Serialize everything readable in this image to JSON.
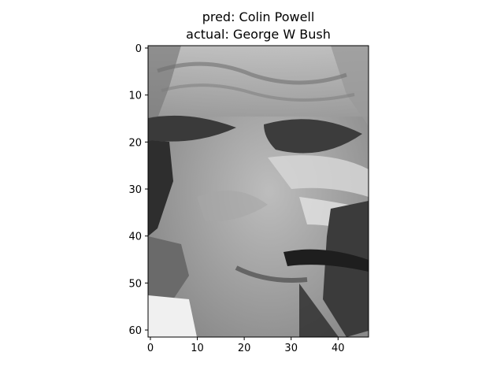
{
  "title": {
    "line1": "pred: Colin Powell",
    "line2": "actual: George W Bush"
  },
  "image": {
    "subject": "grayscale face photo",
    "colormap": "gray",
    "rows": 62,
    "cols": 47
  },
  "axes": {
    "x_ticks": [
      0,
      10,
      20,
      30,
      40
    ],
    "y_ticks": [
      0,
      10,
      20,
      30,
      40,
      50,
      60
    ],
    "x_ticks_text": [
      "0",
      "10",
      "20",
      "30",
      "40"
    ],
    "y_ticks_text": [
      "0",
      "10",
      "20",
      "30",
      "40",
      "50",
      "60"
    ],
    "x_range": [
      -0.5,
      46.5
    ],
    "y_range": [
      -0.5,
      61.5
    ]
  },
  "colors": {
    "frame": "#000000",
    "background": "#ffffff"
  }
}
